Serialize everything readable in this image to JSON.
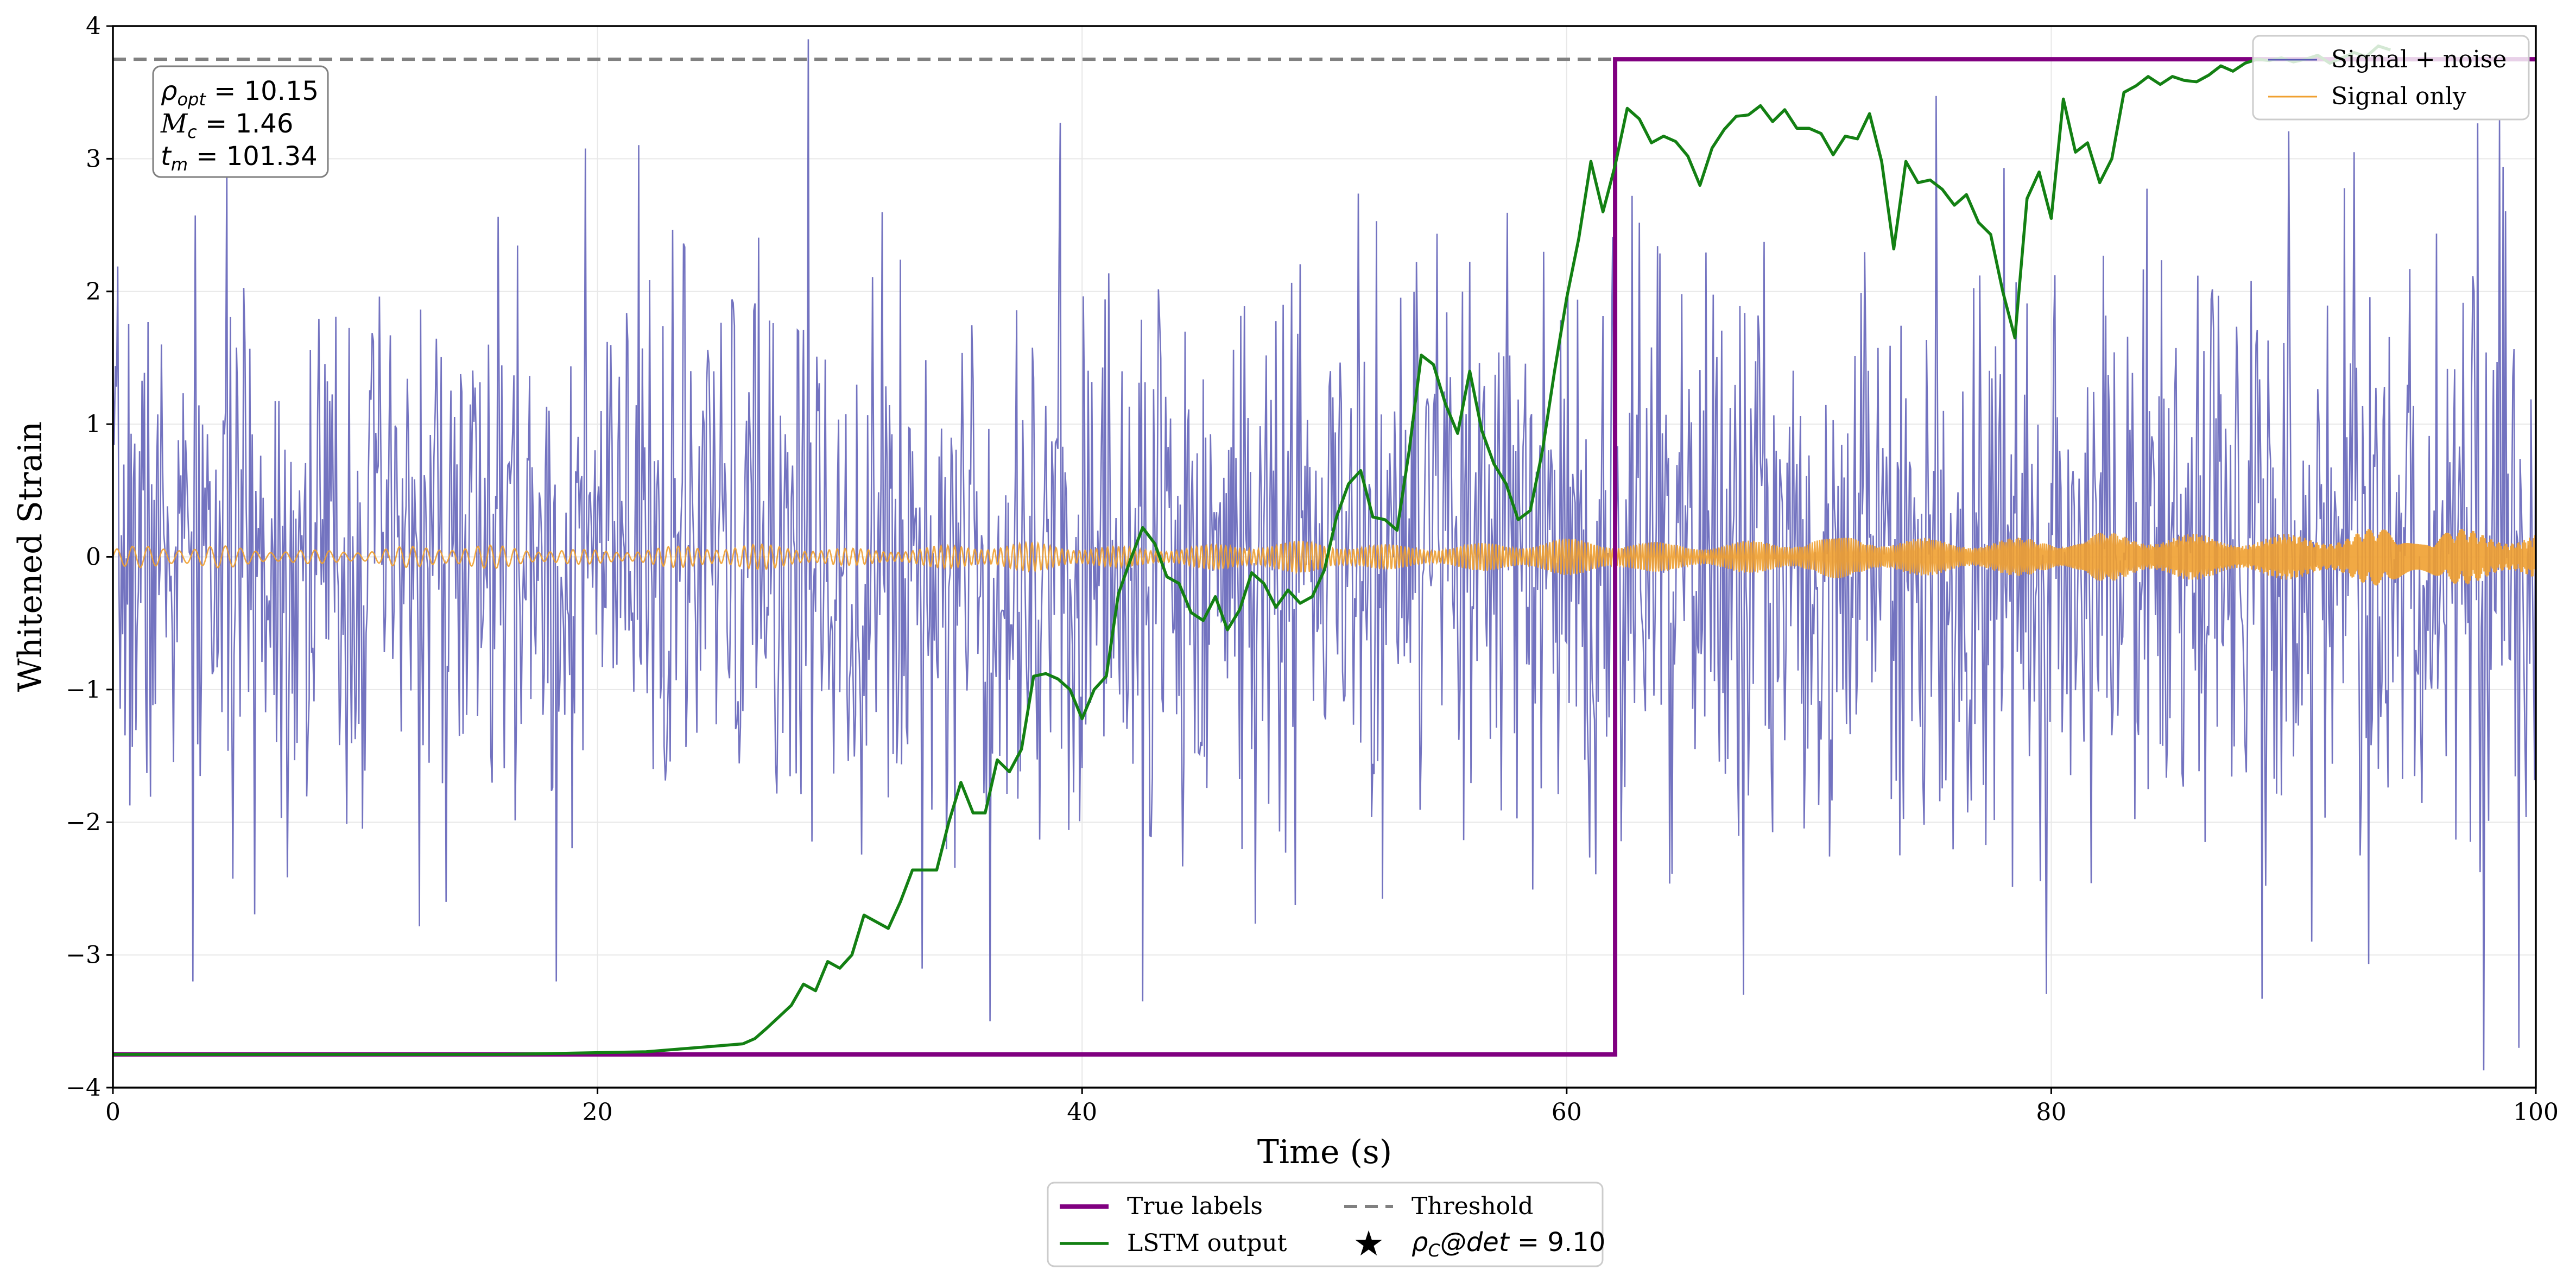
{
  "chart_data": {
    "type": "line",
    "title": "",
    "xlabel": "Time (s)",
    "ylabel": "Whitened Strain",
    "xlim": [
      0,
      100
    ],
    "ylim": [
      -4,
      4
    ],
    "x_ticks": [
      0,
      20,
      40,
      60,
      80,
      100
    ],
    "y_ticks": [
      -4,
      -3,
      -2,
      -1,
      0,
      1,
      2,
      3,
      4
    ],
    "x_tick_labels": [
      "0",
      "20",
      "40",
      "60",
      "80",
      "100"
    ],
    "y_tick_labels": [
      "−4",
      "−3",
      "−2",
      "−1",
      "0",
      "1",
      "2",
      "3",
      "4"
    ],
    "grid": true,
    "colors": {
      "signal_noise": "#5b5bb5",
      "signal_only": "#f0a030",
      "true_labels": "#800080",
      "lstm": "#138013",
      "threshold": "#808080"
    },
    "noise": {
      "std_early": 0.95,
      "std_late": 1.2,
      "step": 0.05,
      "seed": 7,
      "notable_spikes": [
        {
          "x": 3.3,
          "y": -3.2
        },
        {
          "x": 18.3,
          "y": -3.2
        },
        {
          "x": 28.7,
          "y": 3.9
        },
        {
          "x": 36.2,
          "y": -3.5
        },
        {
          "x": 42.5,
          "y": -3.35
        },
        {
          "x": 67.3,
          "y": -3.3
        },
        {
          "x": 92.5,
          "y": 3.05
        },
        {
          "x": 98.5,
          "y": 3.3
        },
        {
          "x": 99.3,
          "y": -3.7
        }
      ]
    },
    "signal_only": {
      "amplitude_start": 0.07,
      "amplitude_end": 0.22
    },
    "true_labels": {
      "low": -3.75,
      "high": 3.75,
      "step_x": 62
    },
    "threshold": 3.75,
    "lstm_output": {
      "x": [
        0,
        10,
        16,
        19,
        22,
        24,
        26,
        26.5,
        27,
        28,
        28.5,
        29,
        29.5,
        30,
        30.5,
        31,
        32,
        32.5,
        33,
        34,
        34.5,
        35,
        35.5,
        36,
        36.5,
        37,
        37.5,
        38,
        38.5,
        39,
        39.5,
        40,
        40.5,
        41,
        41.5,
        42,
        42.5,
        43,
        43.5,
        44,
        44.5,
        45,
        45.5,
        46,
        46.5,
        47,
        47.5,
        48,
        48.5,
        49,
        49.5,
        50,
        50.5,
        51,
        51.5,
        52,
        52.5,
        53,
        53.5,
        54,
        54.5,
        55,
        55.5,
        56,
        56.5,
        57,
        57.5,
        58,
        58.5,
        59,
        59.5,
        60,
        60.5,
        61,
        61.5,
        62,
        62.5,
        63,
        63.5,
        64,
        64.5,
        65,
        65.5,
        66,
        66.5,
        67,
        67.5,
        68,
        68.5,
        69,
        69.5,
        70,
        70.5,
        71,
        71.5,
        72,
        72.5,
        73,
        73.5,
        74,
        74.5,
        75,
        75.5,
        76,
        76.5,
        77,
        77.5,
        78,
        78.5,
        79,
        79.5,
        80,
        80.5,
        81,
        81.5,
        82,
        82.5,
        83,
        83.5,
        84,
        84.5,
        85,
        85.5,
        86,
        86.5,
        87,
        87.5,
        88,
        88.5,
        89,
        89.5,
        90,
        90.5,
        91,
        91.5,
        92,
        92.5,
        93,
        93.5,
        94
      ],
      "y": [
        -3.75,
        -3.75,
        -3.75,
        -3.74,
        -3.73,
        -3.7,
        -3.67,
        -3.63,
        -3.55,
        -3.38,
        -3.22,
        -3.27,
        -3.05,
        -3.1,
        -3.0,
        -2.7,
        -2.8,
        -2.6,
        -2.36,
        -2.36,
        -2.0,
        -1.7,
        -1.93,
        -1.93,
        -1.53,
        -1.62,
        -1.45,
        -0.9,
        -0.88,
        -0.92,
        -1.0,
        -1.22,
        -1.0,
        -0.9,
        -0.28,
        -0.02,
        0.22,
        0.1,
        -0.15,
        -0.2,
        -0.42,
        -0.48,
        -0.3,
        -0.55,
        -0.4,
        -0.12,
        -0.2,
        -0.38,
        -0.25,
        -0.35,
        -0.3,
        -0.1,
        0.3,
        0.55,
        0.65,
        0.3,
        0.28,
        0.2,
        0.8,
        1.52,
        1.45,
        1.15,
        0.93,
        1.4,
        0.95,
        0.7,
        0.55,
        0.28,
        0.35,
        0.8,
        1.4,
        1.95,
        2.4,
        2.98,
        2.6,
        2.95,
        3.38,
        3.3,
        3.12,
        3.17,
        3.13,
        3.02,
        2.8,
        3.08,
        3.22,
        3.32,
        3.33,
        3.4,
        3.28,
        3.37,
        3.23,
        3.23,
        3.19,
        3.03,
        3.17,
        3.15,
        3.34,
        2.98,
        2.32,
        2.98,
        2.82,
        2.84,
        2.77,
        2.65,
        2.73,
        2.52,
        2.43,
        2.0,
        1.65,
        2.7,
        2.9,
        2.55,
        3.45,
        3.05,
        3.12,
        2.82,
        3.0,
        3.5,
        3.55,
        3.62,
        3.56,
        3.62,
        3.59,
        3.58,
        3.63,
        3.7,
        3.66,
        3.72,
        3.75,
        3.74,
        3.76,
        3.73,
        3.75,
        3.78,
        3.72,
        3.76,
        3.8,
        3.77,
        3.85,
        3.82
      ]
    },
    "annotation": {
      "rho_opt": "10.15",
      "mc": "1.46",
      "tm": "101.34"
    },
    "legend_top": [
      {
        "label": "Signal + noise"
      },
      {
        "label": "Signal only"
      }
    ],
    "legend_bottom": [
      {
        "label": "True labels"
      },
      {
        "label": "Threshold"
      },
      {
        "label": "LSTM output"
      },
      {
        "label": "9.10"
      }
    ]
  }
}
